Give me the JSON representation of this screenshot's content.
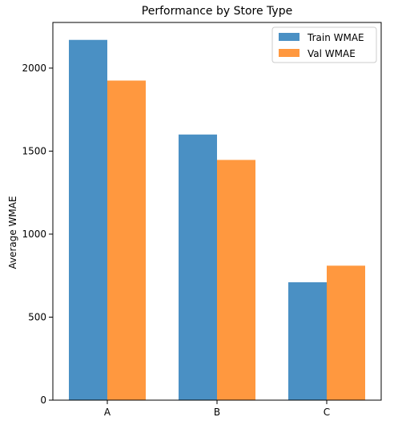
{
  "chart_data": {
    "type": "bar",
    "title": "Performance by Store Type",
    "xlabel": "",
    "ylabel": "Average WMAE",
    "categories": [
      "A",
      "B",
      "C"
    ],
    "series": [
      {
        "name": "Train WMAE",
        "values": [
          2170,
          1600,
          710
        ],
        "color": "#4a90c4"
      },
      {
        "name": "Val WMAE",
        "values": [
          1925,
          1447,
          810
        ],
        "color": "#ff983f"
      }
    ],
    "ylim": [
      0,
      2275
    ],
    "yticks": [
      0,
      500,
      1000,
      1500,
      2000
    ],
    "grid": false,
    "legend_position": "top-right"
  }
}
